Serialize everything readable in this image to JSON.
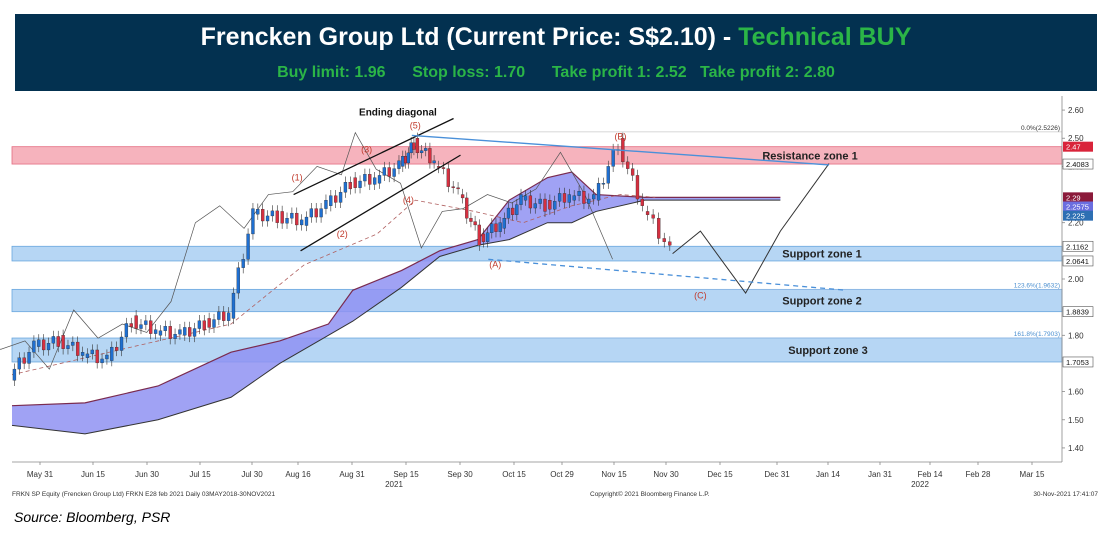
{
  "header": {
    "title_main": "Frencken Group Ltd (Current Price: S$2.10) - ",
    "title_signal": "Technical BUY",
    "subtitle": "Buy limit: 1.96      Stop loss: 1.70      Take profit 1: 2.52   Take profit 2: 2.80",
    "colors": {
      "background": "#033150",
      "title": "#ffffff",
      "accent": "#2bb547"
    }
  },
  "source": "Source: Bloomberg, PSR",
  "chart_data": {
    "type": "line",
    "title": "",
    "ylim": [
      1.35,
      2.65
    ],
    "y_ticks": [
      "2.60",
      "2.50",
      "2.40",
      "2.20",
      "2.00",
      "1.80",
      "1.60",
      "1.50",
      "1.40"
    ],
    "x_ticks": [
      "May 31",
      "Jun 15",
      "Jun 30",
      "Jul 15",
      "Jul 30",
      "Aug 16",
      "Aug 31",
      "Sep 15",
      "Sep 30",
      "Oct 15",
      "Oct 29",
      "Nov 15",
      "Nov 30",
      "Dec 15",
      "Dec 31",
      "Jan 14",
      "Jan 31",
      "Feb 14",
      "Feb 28",
      "Mar 15"
    ],
    "year_labels": [
      "2021",
      "2022"
    ],
    "zones": [
      {
        "name": "Resistance zone 1",
        "y1": 2.4083,
        "y2": 2.47,
        "color": "#f4a6b2"
      },
      {
        "name": "Support zone 1",
        "y1": 2.0641,
        "y2": 2.1162,
        "color": "#a9cff2"
      },
      {
        "name": "Support zone 2",
        "y1": 1.8839,
        "y2": 1.9632,
        "color": "#a9cff2"
      },
      {
        "name": "Support zone 3",
        "y1": 1.7053,
        "y2": 1.7903,
        "color": "#a9cff2"
      }
    ],
    "fibonacci": [
      {
        "label": "0.0%(2.5226)",
        "y": 2.5226
      },
      {
        "label": "123.6%(1.9632)",
        "y": 1.9632
      },
      {
        "label": "161.8%(1.7903)",
        "y": 1.7903
      }
    ],
    "price_tags": [
      {
        "label": "2.47",
        "y": 2.47,
        "color": "#d9243a"
      },
      {
        "label": "2.4083",
        "y": 2.4083,
        "color": "#ffffff"
      },
      {
        "label": "2.29",
        "y": 2.29,
        "color": "#8b1a3a"
      },
      {
        "label": "2.2575",
        "y": 2.2575,
        "color": "#6b6ee0"
      },
      {
        "label": "2.225",
        "y": 2.225,
        "color": "#2d6fb3"
      },
      {
        "label": "2.1162",
        "y": 2.1162,
        "color": "#ffffff"
      },
      {
        "label": "2.0641",
        "y": 2.0641,
        "color": "#ffffff"
      },
      {
        "label": "1.8839",
        "y": 1.8839,
        "color": "#ffffff"
      },
      {
        "label": "1.7053",
        "y": 1.7053,
        "color": "#ffffff"
      }
    ],
    "wave_labels": [
      {
        "label": "(1)",
        "x": "2021-08-14",
        "y": 2.35
      },
      {
        "label": "(2)",
        "x": "2021-08-27",
        "y": 2.15
      },
      {
        "label": "(3)",
        "x": "2021-09-03",
        "y": 2.45
      },
      {
        "label": "(4)",
        "x": "2021-09-15",
        "y": 2.27
      },
      {
        "label": "(5)",
        "x": "2021-09-17",
        "y": 2.535
      },
      {
        "label": "(A)",
        "x": "2021-10-10",
        "y": 2.04
      },
      {
        "label": "(B)",
        "x": "2021-11-15",
        "y": 2.495
      },
      {
        "label": "(C)",
        "x": "2021-12-08",
        "y": 1.93
      }
    ],
    "annotation": "Ending diagonal",
    "footer_left": "FRKN SP Equity (Frencken Group Ltd) FRKN E28 feb 2021  Daily 03MAY2018-30NOV2021",
    "footer_center": "Copyright© 2021 Bloomberg Finance L.P.",
    "footer_right": "30-Nov-2021 17:41:07",
    "close_series": {
      "name": "",
      "x": [
        "2021-05-24",
        "2021-05-31",
        "2021-06-07",
        "2021-06-14",
        "2021-06-21",
        "2021-06-28",
        "2021-07-05",
        "2021-07-12",
        "2021-07-19",
        "2021-07-26",
        "2021-08-02",
        "2021-08-09",
        "2021-08-16",
        "2021-08-23",
        "2021-08-30",
        "2021-09-06",
        "2021-09-13",
        "2021-09-17",
        "2021-09-23",
        "2021-09-30",
        "2021-10-06",
        "2021-10-12",
        "2021-10-18",
        "2021-10-25",
        "2021-11-01",
        "2021-11-08",
        "2021-11-15",
        "2021-11-22",
        "2021-11-30"
      ],
      "values": [
        1.66,
        1.76,
        1.78,
        1.74,
        1.71,
        1.85,
        1.82,
        1.8,
        1.84,
        1.88,
        2.23,
        2.22,
        2.21,
        2.26,
        2.34,
        2.36,
        2.4,
        2.48,
        2.42,
        2.3,
        2.14,
        2.2,
        2.28,
        2.26,
        2.3,
        2.28,
        2.48,
        2.26,
        2.1
      ]
    },
    "kijun_series": {
      "x": [
        "2021-05-24",
        "2021-06-14",
        "2021-07-05",
        "2021-07-26",
        "2021-08-16",
        "2021-09-06",
        "2021-09-17",
        "2021-10-04",
        "2021-10-18",
        "2021-11-01",
        "2021-11-15",
        "2021-11-25"
      ],
      "values": [
        1.66,
        1.72,
        1.78,
        1.84,
        2.05,
        2.16,
        2.28,
        2.24,
        2.2,
        2.26,
        2.3,
        2.29
      ]
    },
    "cloud": {
      "x": [
        "2021-05-24",
        "2021-06-14",
        "2021-07-05",
        "2021-07-26",
        "2021-08-09",
        "2021-08-23",
        "2021-08-30",
        "2021-09-13",
        "2021-09-24",
        "2021-10-05",
        "2021-10-14",
        "2021-10-25",
        "2021-11-01",
        "2021-11-08",
        "2021-11-22",
        "2021-12-06",
        "2021-12-20",
        "2021-12-31"
      ],
      "span_a": [
        1.55,
        1.56,
        1.62,
        1.74,
        1.78,
        1.84,
        1.96,
        2.03,
        2.1,
        2.14,
        2.28,
        2.36,
        2.38,
        2.3,
        2.29,
        2.29,
        2.29,
        2.29
      ],
      "span_b": [
        1.48,
        1.45,
        1.5,
        1.58,
        1.7,
        1.8,
        1.85,
        1.97,
        2.08,
        2.12,
        2.14,
        2.2,
        2.2,
        2.24,
        2.28,
        2.28,
        2.28,
        2.28
      ]
    },
    "projection": {
      "x": [
        "2021-11-30",
        "2021-12-08",
        "2021-12-21",
        "2021-12-31",
        "2022-01-14"
      ],
      "values": [
        2.09,
        2.17,
        1.95,
        2.17,
        2.41
      ]
    },
    "date_range": {
      "start": "2021-05-24",
      "end": "2022-03-22"
    }
  }
}
